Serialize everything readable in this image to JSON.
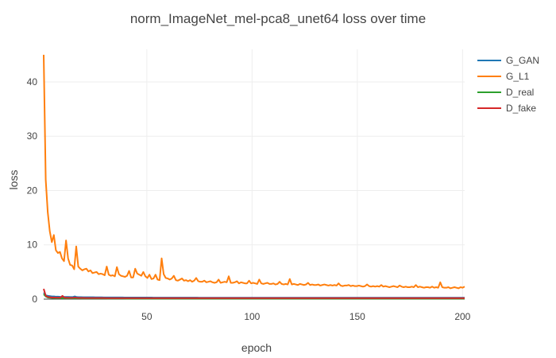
{
  "chart_data": {
    "type": "line",
    "title": "norm_ImageNet_mel-pca8_unet64 loss over time",
    "xlabel": "epoch",
    "ylabel": "loss",
    "xlim": [
      1,
      201
    ],
    "ylim": [
      0,
      46
    ],
    "x_ticks": [
      50,
      100,
      150,
      200
    ],
    "y_ticks": [
      0,
      10,
      20,
      30,
      40
    ],
    "grid": true,
    "legend_position": "top-right",
    "x_range": [
      1,
      201
    ],
    "series": [
      {
        "name": "G_GAN",
        "color": "#1f77b4",
        "values": [
          1.2,
          0.7,
          0.6,
          0.55,
          0.5,
          0.5,
          0.45,
          0.45,
          0.42,
          0.4,
          0.4,
          0.4,
          0.4,
          0.38,
          0.38,
          0.5,
          0.38,
          0.36,
          0.36,
          0.35,
          0.35,
          0.35,
          0.34,
          0.34,
          0.34,
          0.33,
          0.33,
          0.33,
          0.33,
          0.32,
          0.32,
          0.32,
          0.32,
          0.32,
          0.31,
          0.31,
          0.31,
          0.31,
          0.31,
          0.3,
          0.3,
          0.3,
          0.3,
          0.3,
          0.3,
          0.3,
          0.29,
          0.29,
          0.29,
          0.29,
          0.29,
          0.29,
          0.29,
          0.28,
          0.28,
          0.28,
          0.28,
          0.28,
          0.28,
          0.28,
          0.28,
          0.28,
          0.28,
          0.27,
          0.27,
          0.27,
          0.27,
          0.27,
          0.27,
          0.27,
          0.27,
          0.27,
          0.27,
          0.27,
          0.27,
          0.26,
          0.26,
          0.26,
          0.26,
          0.26,
          0.26,
          0.26,
          0.26,
          0.26,
          0.26,
          0.26,
          0.26,
          0.26,
          0.26,
          0.26,
          0.25,
          0.25,
          0.25,
          0.25,
          0.25,
          0.25,
          0.25,
          0.25,
          0.25,
          0.25,
          0.25,
          0.25,
          0.25,
          0.25,
          0.25,
          0.25,
          0.25,
          0.25,
          0.25,
          0.25,
          0.25,
          0.25,
          0.25,
          0.25,
          0.25,
          0.25,
          0.25,
          0.25,
          0.25,
          0.25,
          0.25,
          0.25,
          0.25,
          0.25,
          0.25,
          0.25,
          0.25,
          0.25,
          0.25,
          0.25,
          0.25,
          0.25,
          0.25,
          0.25,
          0.25,
          0.25,
          0.25,
          0.25,
          0.25,
          0.25,
          0.25,
          0.25,
          0.25,
          0.25,
          0.25,
          0.25,
          0.25,
          0.25,
          0.25,
          0.25,
          0.25,
          0.25,
          0.25,
          0.25,
          0.25,
          0.25,
          0.25,
          0.25,
          0.25,
          0.25,
          0.25,
          0.25,
          0.25,
          0.25,
          0.25,
          0.25,
          0.25,
          0.25,
          0.25,
          0.25,
          0.25,
          0.25,
          0.25,
          0.25,
          0.25,
          0.25,
          0.25,
          0.25,
          0.25,
          0.25,
          0.25,
          0.25,
          0.25,
          0.25,
          0.25,
          0.25,
          0.25,
          0.25,
          0.25,
          0.25,
          0.25,
          0.25,
          0.25,
          0.25,
          0.25,
          0.25,
          0.25,
          0.25,
          0.25,
          0.25,
          0.25,
          0.25,
          0.25,
          0.25
        ]
      },
      {
        "name": "G_L1",
        "color": "#ff7f0e",
        "values": [
          45.0,
          22.0,
          16.0,
          12.5,
          10.5,
          11.8,
          9.0,
          8.5,
          8.7,
          7.5,
          7.0,
          10.8,
          7.5,
          6.3,
          6.2,
          5.5,
          9.7,
          6.0,
          5.6,
          5.3,
          5.5,
          5.6,
          5.1,
          5.3,
          4.8,
          4.9,
          5.0,
          4.6,
          4.7,
          4.6,
          4.4,
          6.0,
          4.5,
          4.3,
          4.4,
          4.2,
          5.9,
          4.6,
          4.3,
          4.2,
          4.1,
          4.3,
          5.2,
          4.0,
          4.0,
          5.6,
          4.7,
          4.5,
          4.3,
          5.0,
          4.2,
          3.9,
          4.5,
          3.7,
          3.8,
          4.5,
          3.6,
          3.5,
          7.5,
          4.6,
          3.9,
          3.8,
          3.6,
          3.8,
          4.3,
          3.5,
          3.4,
          3.6,
          3.8,
          3.4,
          3.5,
          3.3,
          3.5,
          3.2,
          3.4,
          3.9,
          3.3,
          3.2,
          3.2,
          3.4,
          3.1,
          3.2,
          3.3,
          3.1,
          3.0,
          3.1,
          3.6,
          3.0,
          3.1,
          3.2,
          3.1,
          4.2,
          3.0,
          3.0,
          3.1,
          3.3,
          2.9,
          3.1,
          3.0,
          2.9,
          2.9,
          3.4,
          2.9,
          3.0,
          2.9,
          2.8,
          3.6,
          2.9,
          2.8,
          2.9,
          3.0,
          2.8,
          2.8,
          2.9,
          2.7,
          2.8,
          3.2,
          2.8,
          2.7,
          2.8,
          2.7,
          3.7,
          2.7,
          2.8,
          2.7,
          2.6,
          2.8,
          2.7,
          2.6,
          2.7,
          3.0,
          2.6,
          2.7,
          2.6,
          2.6,
          2.7,
          2.5,
          2.6,
          2.7,
          2.6,
          2.5,
          2.6,
          2.5,
          2.6,
          2.5,
          2.9,
          2.5,
          2.4,
          2.5,
          2.5,
          2.6,
          2.4,
          2.5,
          2.4,
          2.4,
          2.5,
          2.4,
          2.3,
          2.4,
          2.7,
          2.4,
          2.3,
          2.4,
          2.3,
          2.4,
          2.3,
          2.6,
          2.3,
          2.4,
          2.3,
          2.2,
          2.3,
          2.4,
          2.3,
          2.2,
          2.5,
          2.3,
          2.2,
          2.3,
          2.2,
          2.2,
          2.3,
          2.2,
          2.6,
          2.2,
          2.3,
          2.2,
          2.1,
          2.2,
          2.2,
          2.1,
          2.3,
          2.1,
          2.2,
          2.1,
          3.1,
          2.2,
          2.1,
          2.1,
          2.2,
          2.0,
          2.1,
          2.2,
          2.1,
          2.0,
          2.2,
          2.1,
          2.3
        ]
      },
      {
        "name": "D_real",
        "color": "#2ca02c",
        "values": [
          0.9,
          0.5,
          0.3,
          0.25,
          0.22,
          0.2,
          0.19,
          0.18,
          0.17,
          0.16,
          0.16,
          0.15,
          0.15,
          0.15,
          0.14,
          0.14,
          0.14,
          0.14,
          0.13,
          0.13,
          0.13,
          0.13,
          0.13,
          0.12,
          0.12,
          0.12,
          0.12,
          0.12,
          0.12,
          0.12,
          0.11,
          0.11,
          0.11,
          0.11,
          0.11,
          0.11,
          0.11,
          0.11,
          0.11,
          0.1,
          0.1,
          0.1,
          0.1,
          0.1,
          0.1,
          0.1,
          0.1,
          0.1,
          0.1,
          0.1,
          0.1,
          0.1,
          0.1,
          0.1,
          0.1,
          0.1,
          0.1,
          0.1,
          0.1,
          0.1,
          0.1,
          0.1,
          0.1,
          0.1,
          0.1,
          0.1,
          0.1,
          0.1,
          0.1,
          0.1,
          0.1,
          0.1,
          0.1,
          0.1,
          0.1,
          0.1,
          0.1,
          0.1,
          0.1,
          0.1,
          0.1,
          0.1,
          0.1,
          0.1,
          0.1,
          0.1,
          0.1,
          0.1,
          0.1,
          0.1,
          0.1,
          0.1,
          0.1,
          0.1,
          0.1,
          0.1,
          0.1,
          0.1,
          0.1,
          0.1,
          0.1,
          0.1,
          0.1,
          0.1,
          0.1,
          0.1,
          0.1,
          0.1,
          0.1,
          0.1,
          0.1,
          0.1,
          0.1,
          0.1,
          0.1,
          0.1,
          0.1,
          0.1,
          0.1,
          0.1,
          0.1,
          0.1,
          0.1,
          0.1,
          0.1,
          0.1,
          0.1,
          0.1,
          0.1,
          0.1,
          0.1,
          0.1,
          0.1,
          0.1,
          0.1,
          0.1,
          0.1,
          0.1,
          0.1,
          0.1,
          0.1,
          0.1,
          0.1,
          0.1,
          0.1,
          0.1,
          0.1,
          0.1,
          0.1,
          0.1,
          0.1,
          0.1,
          0.1,
          0.1,
          0.1,
          0.1,
          0.1,
          0.1,
          0.1,
          0.1,
          0.1,
          0.1,
          0.1,
          0.1,
          0.1,
          0.1,
          0.1,
          0.1,
          0.1,
          0.1,
          0.1,
          0.1,
          0.1,
          0.1,
          0.1,
          0.1,
          0.1,
          0.1,
          0.1,
          0.1,
          0.1,
          0.1,
          0.1,
          0.1,
          0.1,
          0.1,
          0.1,
          0.1,
          0.1,
          0.1,
          0.1,
          0.1,
          0.1,
          0.1,
          0.1,
          0.1,
          0.1,
          0.1,
          0.1,
          0.1
        ]
      },
      {
        "name": "D_fake",
        "color": "#d62728",
        "values": [
          1.9,
          0.6,
          0.4,
          0.35,
          0.3,
          0.3,
          0.28,
          0.27,
          0.26,
          0.6,
          0.25,
          0.25,
          0.24,
          0.24,
          0.23,
          0.3,
          0.23,
          0.22,
          0.22,
          0.22,
          0.21,
          0.21,
          0.21,
          0.21,
          0.2,
          0.2,
          0.2,
          0.2,
          0.2,
          0.2,
          0.19,
          0.19,
          0.19,
          0.19,
          0.19,
          0.19,
          0.19,
          0.19,
          0.19,
          0.18,
          0.18,
          0.18,
          0.18,
          0.18,
          0.18,
          0.18,
          0.18,
          0.18,
          0.18,
          0.18,
          0.18,
          0.18,
          0.18,
          0.18,
          0.18,
          0.18,
          0.18,
          0.18,
          0.18,
          0.18,
          0.18,
          0.18,
          0.18,
          0.18,
          0.18,
          0.18,
          0.18,
          0.18,
          0.18,
          0.18,
          0.18,
          0.18,
          0.18,
          0.18,
          0.18,
          0.18,
          0.18,
          0.18,
          0.18,
          0.18,
          0.18,
          0.18,
          0.18,
          0.18,
          0.18,
          0.18,
          0.18,
          0.18,
          0.18,
          0.18,
          0.18,
          0.18,
          0.18,
          0.18,
          0.18,
          0.18,
          0.18,
          0.18,
          0.18,
          0.18,
          0.18,
          0.18,
          0.18,
          0.18,
          0.18,
          0.18,
          0.18,
          0.18,
          0.18,
          0.18,
          0.18,
          0.18,
          0.18,
          0.18,
          0.18,
          0.18,
          0.18,
          0.18,
          0.18,
          0.18,
          0.18,
          0.18,
          0.18,
          0.18,
          0.18,
          0.18,
          0.18,
          0.18,
          0.18,
          0.18,
          0.18,
          0.18,
          0.18,
          0.18,
          0.18,
          0.18,
          0.18,
          0.18,
          0.18,
          0.18,
          0.18,
          0.18,
          0.18,
          0.18,
          0.18,
          0.18,
          0.18,
          0.18,
          0.18,
          0.18,
          0.18,
          0.18,
          0.18,
          0.18,
          0.18,
          0.18,
          0.18,
          0.18,
          0.18,
          0.18,
          0.18,
          0.18,
          0.18,
          0.18,
          0.18,
          0.18,
          0.18,
          0.18,
          0.18,
          0.18,
          0.18,
          0.18,
          0.18,
          0.18,
          0.18,
          0.18,
          0.18,
          0.18,
          0.18,
          0.18,
          0.18,
          0.18,
          0.18,
          0.18,
          0.18,
          0.18,
          0.18,
          0.18,
          0.18,
          0.18,
          0.18,
          0.18,
          0.18,
          0.18,
          0.18,
          0.18,
          0.18,
          0.18,
          0.18,
          0.18,
          0.18,
          0.18,
          0.18
        ]
      }
    ]
  }
}
